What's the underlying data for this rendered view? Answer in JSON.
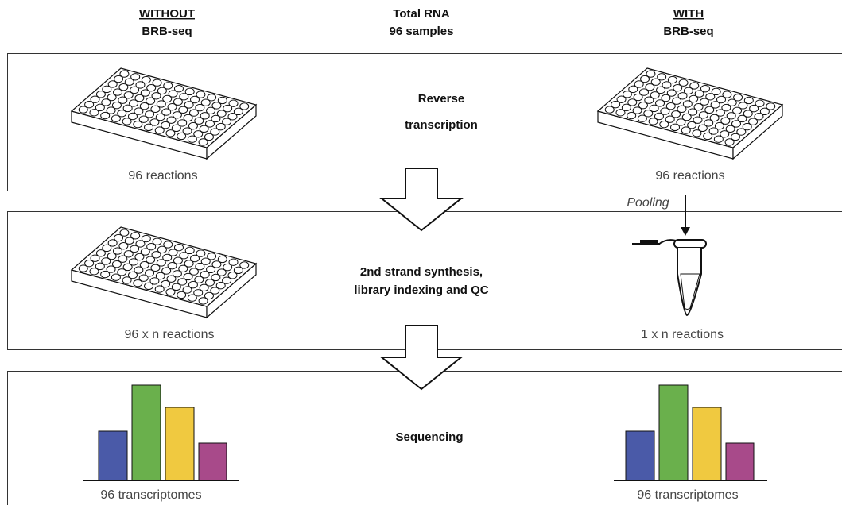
{
  "header": {
    "left": {
      "title": "WITHOUT",
      "subtitle": "BRB-seq"
    },
    "center": {
      "lines": [
        "Total RNA",
        "96 samples"
      ]
    },
    "right": {
      "title": "WITH",
      "subtitle": "BRB-seq"
    }
  },
  "steps": [
    {
      "label": [
        "Reverse",
        "transcription"
      ],
      "left_caption": "96 reactions",
      "right_caption": "96 reactions"
    },
    {
      "label": [
        "2nd strand synthesis,",
        "library indexing and QC"
      ],
      "left_caption": "96 x n reactions",
      "right_caption": "1 x n reactions"
    },
    {
      "label": [
        "Sequencing"
      ],
      "left_caption": "96 transcriptomes",
      "right_caption": "96 transcriptomes"
    }
  ],
  "pooling": "Pooling"
}
